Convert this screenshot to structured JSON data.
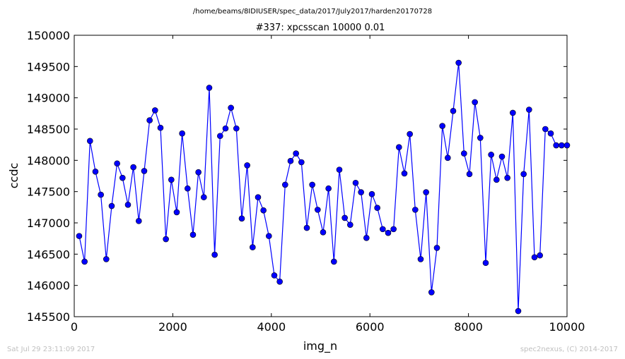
{
  "header": {
    "path": "/home/beams/8IDIUSER/spec_data/2017/July2017/harden20170728"
  },
  "footer": {
    "timestamp": "Sat Jul 29 23:11:09 2017",
    "credit": "spec2nexus, (C) 2014-2017"
  },
  "chart_data": {
    "type": "line",
    "title": "#337: xpcsscan 10000 0.01",
    "xlabel": "img_n",
    "ylabel": "ccdc",
    "xlim": [
      0,
      10000
    ],
    "ylim": [
      145500,
      150000
    ],
    "xticks": [
      0,
      2000,
      4000,
      6000,
      8000,
      10000
    ],
    "yticks": [
      145500,
      146000,
      146500,
      147000,
      147500,
      148000,
      148500,
      149000,
      149500,
      150000
    ],
    "grid": false,
    "legend": "none",
    "color": "#0000ff",
    "marker": "circle",
    "x": [
      100,
      210,
      320,
      430,
      540,
      650,
      760,
      870,
      980,
      1090,
      1200,
      1310,
      1420,
      1530,
      1640,
      1750,
      1860,
      1970,
      2080,
      2190,
      2300,
      2410,
      2520,
      2630,
      2740,
      2850,
      2960,
      3070,
      3180,
      3290,
      3400,
      3510,
      3620,
      3730,
      3840,
      3950,
      4060,
      4170,
      4280,
      4390,
      4500,
      4610,
      4720,
      4830,
      4940,
      5050,
      5160,
      5270,
      5380,
      5490,
      5600,
      5710,
      5820,
      5930,
      6040,
      6150,
      6260,
      6370,
      6480,
      6590,
      6700,
      6810,
      6920,
      7030,
      7140,
      7250,
      7360,
      7470,
      7580,
      7690,
      7800,
      7910,
      8020,
      8130,
      8240,
      8350,
      8460,
      8570,
      8680,
      8790,
      8900,
      9010,
      9120,
      9230,
      9340,
      9450,
      9560,
      9670,
      9780,
      9890,
      10000
    ],
    "y": [
      146790,
      146380,
      148310,
      147820,
      147450,
      146420,
      147270,
      147950,
      147720,
      147290,
      147890,
      147030,
      147830,
      148640,
      148800,
      148520,
      146740,
      147690,
      147170,
      148430,
      147550,
      146810,
      147810,
      147410,
      149160,
      146490,
      148390,
      148510,
      148840,
      148510,
      147070,
      147920,
      146610,
      147410,
      147200,
      146790,
      146160,
      146060,
      147610,
      147990,
      148110,
      147970,
      146920,
      147610,
      147210,
      146850,
      147550,
      146380,
      147850,
      147080,
      146970,
      147640,
      147490,
      146760,
      147460,
      147240,
      146900,
      146840,
      146900,
      148210,
      147790,
      148420,
      147210,
      146420,
      147490,
      145890,
      146600,
      148550,
      148040,
      148790,
      149560,
      148110,
      147780,
      148930,
      148360,
      146360,
      148090,
      147690,
      148060,
      147720,
      148760,
      145590,
      147780,
      148810,
      146450,
      146480,
      148500,
      148430,
      148240,
      148240,
      148240
    ]
  }
}
